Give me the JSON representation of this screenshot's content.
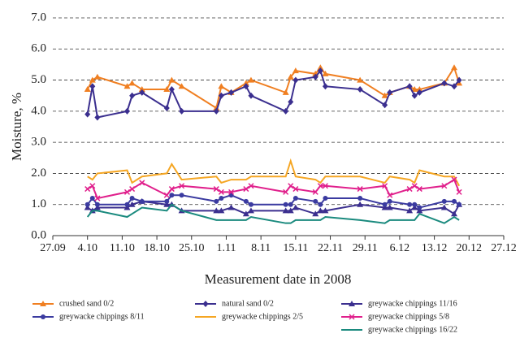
{
  "chart_data": {
    "type": "line",
    "y_label": "Moisture, %",
    "x_label": "Measurement date in 2008",
    "x": [
      "2008-10-04",
      "2008-10-05",
      "2008-10-06",
      "2008-10-12",
      "2008-10-13",
      "2008-10-15",
      "2008-10-20",
      "2008-10-21",
      "2008-10-23",
      "2008-10-30",
      "2008-10-31",
      "2008-11-02",
      "2008-11-05",
      "2008-11-06",
      "2008-11-13",
      "2008-11-14",
      "2008-11-15",
      "2008-11-19",
      "2008-11-20",
      "2008-11-21",
      "2008-11-28",
      "2008-12-03",
      "2008-12-04",
      "2008-12-08",
      "2008-12-09",
      "2008-12-10",
      "2008-12-15",
      "2008-12-17",
      "2008-12-18"
    ],
    "xlim": [
      "2008-09-27",
      "2008-12-27"
    ],
    "xticks": [
      {
        "value": "2008-09-27",
        "label": "27.09"
      },
      {
        "value": "2008-10-04",
        "label": "4.10"
      },
      {
        "value": "2008-10-11",
        "label": "11.10"
      },
      {
        "value": "2008-10-18",
        "label": "18.10"
      },
      {
        "value": "2008-10-25",
        "label": "25.10"
      },
      {
        "value": "2008-11-01",
        "label": "1.11"
      },
      {
        "value": "2008-11-08",
        "label": "8.11"
      },
      {
        "value": "2008-11-15",
        "label": "15.11"
      },
      {
        "value": "2008-11-22",
        "label": "22.11"
      },
      {
        "value": "2008-11-29",
        "label": "29.11"
      },
      {
        "value": "2008-12-06",
        "label": "6.12"
      },
      {
        "value": "2008-12-13",
        "label": "13.12"
      },
      {
        "value": "2008-12-20",
        "label": "20.12"
      },
      {
        "value": "2008-12-27",
        "label": "27.12"
      }
    ],
    "ylim": [
      0,
      7
    ],
    "yticks": [
      {
        "value": 0,
        "label": "0.0"
      },
      {
        "value": 1,
        "label": "1.0"
      },
      {
        "value": 2,
        "label": "2.0"
      },
      {
        "value": 3,
        "label": "3.0"
      },
      {
        "value": 4,
        "label": "4.0"
      },
      {
        "value": 5,
        "label": "5.0"
      },
      {
        "value": 6,
        "label": "6.0"
      },
      {
        "value": 7,
        "label": "7.0"
      }
    ],
    "grid": true,
    "series": [
      {
        "name": "crushed sand 0/2",
        "color": "#f07f21",
        "marker": "triangle",
        "values": [
          4.7,
          5.0,
          5.1,
          4.8,
          4.9,
          4.7,
          4.7,
          5.0,
          4.8,
          4.1,
          4.8,
          4.6,
          4.9,
          5.0,
          4.6,
          5.1,
          5.3,
          5.2,
          5.4,
          5.2,
          5.0,
          4.5,
          4.6,
          4.8,
          4.7,
          4.7,
          4.9,
          5.4,
          4.9
        ]
      },
      {
        "name": "natural sand 0/2",
        "color": "#3b2f8f",
        "marker": "diamond",
        "values": [
          3.9,
          4.8,
          3.8,
          4.0,
          4.5,
          4.6,
          4.1,
          4.7,
          4.0,
          4.0,
          4.5,
          4.6,
          4.8,
          4.5,
          4.0,
          4.3,
          5.0,
          5.1,
          5.3,
          4.8,
          4.7,
          4.2,
          4.6,
          4.8,
          4.5,
          4.6,
          4.9,
          4.8,
          5.0
        ]
      },
      {
        "name": "greywacke chippings 11/16",
        "color": "#3b2f8f",
        "marker": "triangle",
        "values": [
          0.9,
          0.8,
          0.9,
          0.9,
          1.0,
          1.1,
          1.0,
          1.0,
          0.8,
          0.8,
          0.8,
          0.9,
          0.7,
          0.8,
          0.8,
          0.8,
          0.9,
          0.7,
          0.8,
          0.8,
          1.0,
          0.9,
          0.9,
          0.8,
          0.9,
          0.8,
          0.9,
          0.7,
          1.0
        ]
      },
      {
        "name": "greywacke chippings 8/11",
        "color": "#3b3ba0",
        "marker": "circle",
        "values": [
          1.0,
          1.2,
          1.0,
          1.0,
          1.2,
          1.1,
          1.1,
          1.3,
          1.3,
          1.1,
          1.2,
          1.3,
          1.1,
          1.0,
          1.0,
          1.0,
          1.2,
          1.1,
          1.0,
          1.2,
          1.2,
          1.0,
          1.1,
          1.0,
          1.0,
          0.9,
          1.1,
          1.1,
          1.0
        ]
      },
      {
        "name": "greywacke chippings 2/5",
        "color": "#f5a623",
        "marker": "none",
        "values": [
          1.9,
          1.8,
          2.0,
          2.1,
          1.7,
          1.9,
          2.0,
          2.3,
          1.8,
          1.9,
          1.7,
          1.8,
          1.8,
          1.9,
          1.9,
          2.4,
          1.9,
          1.8,
          1.7,
          1.9,
          1.9,
          1.7,
          1.9,
          1.8,
          1.7,
          2.1,
          1.9,
          1.9,
          1.6
        ]
      },
      {
        "name": "greywacke chippings 5/8",
        "color": "#e0208c",
        "marker": "x",
        "values": [
          1.5,
          1.6,
          1.2,
          1.4,
          1.5,
          1.7,
          1.3,
          1.5,
          1.6,
          1.5,
          1.4,
          1.4,
          1.5,
          1.6,
          1.4,
          1.6,
          1.5,
          1.4,
          1.6,
          1.6,
          1.5,
          1.6,
          1.3,
          1.5,
          1.6,
          1.5,
          1.6,
          1.8,
          1.4
        ]
      },
      {
        "name": "greywacke chippings 16/22",
        "color": "#1a8a7e",
        "marker": "none",
        "values": [
          0.6,
          0.8,
          0.8,
          0.6,
          0.7,
          0.9,
          0.8,
          1.0,
          0.8,
          0.5,
          0.5,
          0.5,
          0.5,
          0.6,
          0.4,
          0.4,
          0.5,
          0.5,
          0.5,
          0.6,
          0.5,
          0.4,
          0.5,
          0.5,
          0.5,
          0.7,
          0.4,
          0.6,
          0.5
        ]
      }
    ]
  }
}
